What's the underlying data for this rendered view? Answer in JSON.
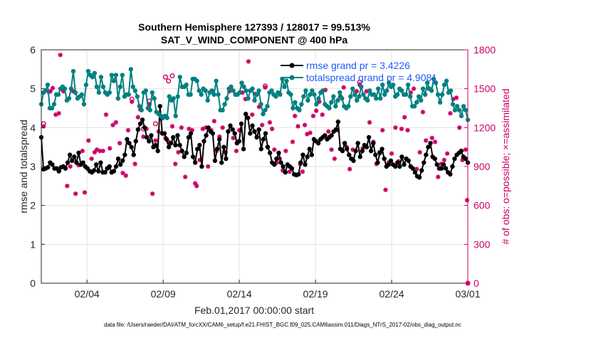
{
  "chart_data": {
    "type": "line",
    "title_line1": "Southern Hemisphere 127393 / 128017 = 99.513%",
    "title_line2": "SAT_V_WIND_COMPONENT @ 400 hPa",
    "xlabel": "Feb.01,2017 00:00:00 start",
    "ylabel": "rmse and totalspread",
    "y2label": "# of obs: o=possible; ×=assimilated",
    "footnote": "data file: /Users/raeder/DAI/ATM_forcXX/CAM6_setup/f.e21.FHIST_BGC.f09_025.CAM6assim.011/Diags_NTrS_2017-02/obs_diag_output.nc",
    "x_tick_labels": [
      "02/04",
      "02/09",
      "02/14",
      "02/19",
      "02/24",
      "03/01"
    ],
    "x_tick_days": [
      4,
      9,
      14,
      19,
      24,
      29
    ],
    "xlim": [
      1,
      29
    ],
    "ylim": [
      0,
      6
    ],
    "y_ticks": [
      0,
      1,
      2,
      3,
      4,
      5,
      6
    ],
    "y2lim": [
      0,
      1800
    ],
    "y2_ticks": [
      0,
      300,
      600,
      900,
      1200,
      1500,
      1800
    ],
    "grid": true,
    "legend_position": "top-right",
    "colors": {
      "rmse": "#000000",
      "spread": "#008080",
      "obs": "#cc0066",
      "legend_text": "#1f5bff"
    },
    "series": [
      {
        "name": "rmse grand pr = 3.4226",
        "values": [
          3.75,
          2.93,
          2.95,
          2.98,
          3.1,
          3.05,
          2.95,
          2.95,
          2.88,
          2.98,
          3.0,
          2.95,
          3.1,
          3.3,
          3.15,
          3.25,
          3.1,
          3.35,
          3.05,
          3.1,
          3.0,
          2.95,
          2.88,
          2.85,
          2.9,
          3.05,
          2.88,
          3.1,
          2.85,
          2.85,
          2.95,
          3.0,
          2.85,
          2.88,
          3.0,
          3.2,
          3.05,
          3.15,
          3.3,
          3.7,
          3.6,
          3.5,
          3.3,
          3.65,
          3.95,
          4.1,
          4.2,
          4.0,
          3.75,
          3.65,
          3.8,
          3.5,
          3.55,
          3.4,
          4.55,
          3.85,
          3.85,
          3.7,
          3.5,
          3.6,
          3.75,
          3.55,
          3.8,
          3.55,
          3.4,
          3.25,
          3.35,
          3.75,
          3.85,
          3.25,
          3.1,
          3.45,
          3.55,
          3.0,
          3.65,
          3.8,
          4.0,
          3.9,
          3.85,
          3.15,
          3.45,
          3.7,
          3.1,
          3.5,
          3.2,
          3.9,
          4.05,
          3.95,
          3.85,
          3.6,
          3.65,
          4.1,
          3.45,
          4.35,
          4.25,
          3.85,
          4.05,
          3.9,
          3.75,
          3.95,
          3.45,
          3.7,
          3.85,
          3.5,
          3.35,
          3.1,
          3.05,
          3.2,
          3.35,
          3.1,
          3.0,
          2.85,
          3.05,
          3.0,
          2.95,
          2.8,
          2.78,
          2.8,
          3.1,
          3.3,
          3.05,
          3.25,
          3.45,
          3.3,
          3.7,
          3.65,
          3.6,
          3.7,
          3.75,
          3.8,
          3.7,
          3.75,
          3.8,
          3.9,
          3.95,
          4.15,
          3.45,
          3.4,
          3.6,
          3.45,
          3.3,
          3.2,
          3.15,
          3.4,
          3.6,
          3.25,
          3.4,
          3.55,
          3.5,
          3.75,
          3.4,
          3.6,
          3.3,
          3.1,
          3.35,
          3.45,
          3.2,
          3.0,
          3.05,
          3.15,
          3.05,
          3.0,
          3.1,
          3.0,
          3.25,
          3.05,
          3.2,
          3.15,
          3.0,
          2.95,
          2.85,
          2.75,
          2.72,
          2.9,
          3.1,
          3.3,
          3.5,
          3.6,
          3.25,
          3.2,
          3.05,
          2.95,
          2.95,
          3.05,
          2.95,
          2.85,
          2.8,
          3.0,
          3.2,
          3.3,
          3.35,
          3.4,
          3.25,
          3.2,
          3.1
        ]
      },
      {
        "name": "totalspread grand pr = 4.9081",
        "values": [
          4.6,
          4.9,
          4.95,
          5.1,
          4.5,
          4.5,
          4.6,
          4.85,
          4.85,
          5.0,
          5.05,
          5.0,
          4.7,
          4.75,
          5.0,
          5.45,
          4.9,
          4.75,
          4.8,
          4.85,
          4.6,
          5.1,
          5.45,
          5.35,
          5.3,
          5.4,
          5.05,
          4.9,
          5.3,
          5.05,
          4.9,
          4.85,
          4.9,
          5.35,
          5.2,
          5.35,
          4.75,
          5.05,
          5.35,
          4.8,
          4.85,
          4.85,
          5.5,
          5.05,
          4.95,
          4.8,
          4.55,
          4.45,
          4.9,
          4.95,
          4.5,
          4.45,
          4.9,
          4.75,
          4.4,
          4.35,
          4.3,
          4.25,
          4.3,
          4.25,
          4.8,
          4.7,
          4.75,
          4.3,
          4.8,
          5.3,
          5.05,
          5.05,
          5.1,
          4.85,
          4.85,
          5.25,
          5.25,
          5.2,
          4.95,
          4.85,
          5.0,
          4.95,
          4.7,
          4.9,
          4.95,
          4.85,
          5.2,
          4.85,
          4.45,
          4.45,
          4.6,
          4.75,
          5.0,
          5.05,
          4.95,
          4.85,
          4.85,
          4.9,
          5.15,
          5.05,
          4.95,
          4.75,
          4.95,
          5.0,
          4.7,
          4.85,
          4.95,
          4.6,
          4.35,
          4.45,
          4.55,
          4.9,
          4.95,
          4.85,
          4.8,
          4.9,
          4.85,
          5.25,
          5.05,
          5.2,
          4.9,
          4.85,
          4.5,
          4.65,
          4.5,
          4.45,
          4.6,
          4.8,
          4.95,
          4.7,
          4.85,
          4.95,
          4.85,
          4.6,
          4.75,
          4.9,
          4.95,
          4.6,
          4.55,
          4.5,
          4.65,
          4.8,
          4.55,
          4.7,
          4.9,
          4.75,
          4.55,
          4.5,
          4.55,
          4.8,
          5.0,
          4.85,
          4.7,
          4.8,
          5.05,
          4.85,
          4.75,
          4.7,
          4.95,
          4.85,
          4.85,
          4.75,
          5.0,
          4.75,
          5.1,
          4.85,
          4.95,
          5.15,
          5.05,
          5.1,
          4.8,
          4.85,
          5.0,
          4.95,
          4.85,
          4.85,
          5.1,
          4.8,
          4.55,
          4.55,
          4.65,
          4.8,
          4.7,
          5.0,
          4.85,
          5.15,
          5.0,
          4.95,
          5.25,
          5.15,
          4.85,
          4.65,
          4.85,
          5.1,
          5.2,
          4.9,
          4.95,
          4.6,
          4.45,
          4.55,
          4.45,
          4.3,
          4.55,
          4.45,
          4.2
        ]
      }
    ],
    "obs_assimilated": [
      {
        "x": 1.15,
        "y": 1210
      },
      {
        "x": 1.5,
        "y": 1475
      },
      {
        "x": 1.6,
        "y": 1480
      },
      {
        "x": 1.75,
        "y": 1505
      },
      {
        "x": 1.95,
        "y": 1300
      },
      {
        "x": 2.15,
        "y": 1310
      },
      {
        "x": 2.25,
        "y": 1760
      },
      {
        "x": 2.45,
        "y": 1480
      },
      {
        "x": 2.7,
        "y": 750
      },
      {
        "x": 2.9,
        "y": 900
      },
      {
        "x": 3.1,
        "y": 1480
      },
      {
        "x": 3.25,
        "y": 690
      },
      {
        "x": 3.45,
        "y": 910
      },
      {
        "x": 3.7,
        "y": 1020
      },
      {
        "x": 3.85,
        "y": 700
      },
      {
        "x": 4.1,
        "y": 1100
      },
      {
        "x": 4.3,
        "y": 960
      },
      {
        "x": 4.5,
        "y": 1010
      },
      {
        "x": 4.65,
        "y": 1030
      },
      {
        "x": 4.85,
        "y": 1020
      },
      {
        "x": 5.05,
        "y": 1020
      },
      {
        "x": 5.25,
        "y": 1300
      },
      {
        "x": 5.5,
        "y": 1040
      },
      {
        "x": 5.7,
        "y": 1220
      },
      {
        "x": 5.9,
        "y": 1240
      },
      {
        "x": 6.15,
        "y": 1080
      },
      {
        "x": 6.35,
        "y": 850
      },
      {
        "x": 6.55,
        "y": 830
      },
      {
        "x": 6.7,
        "y": 1180
      },
      {
        "x": 6.95,
        "y": 1400
      },
      {
        "x": 7.15,
        "y": 920
      },
      {
        "x": 7.35,
        "y": 1280
      },
      {
        "x": 7.5,
        "y": 1340
      },
      {
        "x": 7.7,
        "y": 1130
      },
      {
        "x": 7.9,
        "y": 1190
      },
      {
        "x": 8.1,
        "y": 1380
      },
      {
        "x": 8.3,
        "y": 690
      },
      {
        "x": 8.5,
        "y": 1100
      },
      {
        "x": 8.7,
        "y": 1170
      },
      {
        "x": 8.9,
        "y": 1270
      },
      {
        "x": 9.15,
        "y": 1120
      },
      {
        "x": 9.35,
        "y": 1090
      },
      {
        "x": 9.6,
        "y": 1210
      },
      {
        "x": 9.8,
        "y": 920
      },
      {
        "x": 10.0,
        "y": 1010
      },
      {
        "x": 10.2,
        "y": 1200
      },
      {
        "x": 10.45,
        "y": 820
      },
      {
        "x": 10.7,
        "y": 1190
      },
      {
        "x": 10.9,
        "y": 1180
      },
      {
        "x": 11.1,
        "y": 770
      },
      {
        "x": 11.2,
        "y": 750
      },
      {
        "x": 11.4,
        "y": 950
      },
      {
        "x": 11.6,
        "y": 1190
      },
      {
        "x": 11.8,
        "y": 1200
      },
      {
        "x": 11.95,
        "y": 900
      },
      {
        "x": 12.15,
        "y": 1180
      },
      {
        "x": 12.35,
        "y": 1250
      },
      {
        "x": 12.5,
        "y": 1020
      },
      {
        "x": 12.7,
        "y": 1130
      },
      {
        "x": 12.9,
        "y": 1200
      },
      {
        "x": 13.1,
        "y": 1010
      },
      {
        "x": 13.35,
        "y": 1480
      },
      {
        "x": 13.6,
        "y": 1120
      },
      {
        "x": 13.8,
        "y": 1020
      },
      {
        "x": 14.0,
        "y": 1180
      },
      {
        "x": 14.2,
        "y": 1470
      },
      {
        "x": 14.4,
        "y": 1420
      },
      {
        "x": 14.6,
        "y": 1710
      },
      {
        "x": 14.85,
        "y": 1300
      },
      {
        "x": 15.05,
        "y": 1460
      },
      {
        "x": 15.3,
        "y": 1360
      },
      {
        "x": 15.5,
        "y": 1220
      },
      {
        "x": 15.7,
        "y": 1510
      },
      {
        "x": 15.85,
        "y": 1050
      },
      {
        "x": 16.0,
        "y": 1240
      },
      {
        "x": 16.15,
        "y": 1190
      },
      {
        "x": 16.3,
        "y": 1030
      },
      {
        "x": 16.45,
        "y": 930
      },
      {
        "x": 16.65,
        "y": 960
      },
      {
        "x": 16.85,
        "y": 870
      },
      {
        "x": 17.05,
        "y": 1020
      },
      {
        "x": 17.3,
        "y": 860
      },
      {
        "x": 17.5,
        "y": 1090
      },
      {
        "x": 17.65,
        "y": 1290
      },
      {
        "x": 17.85,
        "y": 1210
      },
      {
        "x": 18.0,
        "y": 920
      },
      {
        "x": 18.15,
        "y": 860
      },
      {
        "x": 18.3,
        "y": 1220
      },
      {
        "x": 18.45,
        "y": 1150
      },
      {
        "x": 18.65,
        "y": 1160
      },
      {
        "x": 18.85,
        "y": 1290
      },
      {
        "x": 19.05,
        "y": 1330
      },
      {
        "x": 19.25,
        "y": 1400
      },
      {
        "x": 19.45,
        "y": 1300
      },
      {
        "x": 19.65,
        "y": 1490
      },
      {
        "x": 19.85,
        "y": 1170
      },
      {
        "x": 20.05,
        "y": 1030
      },
      {
        "x": 20.25,
        "y": 960
      },
      {
        "x": 20.45,
        "y": 1180
      },
      {
        "x": 20.65,
        "y": 1440
      },
      {
        "x": 20.85,
        "y": 1510
      },
      {
        "x": 21.05,
        "y": 1050
      },
      {
        "x": 21.25,
        "y": 880
      },
      {
        "x": 21.45,
        "y": 1030
      },
      {
        "x": 21.7,
        "y": 1480
      },
      {
        "x": 21.9,
        "y": 1530
      },
      {
        "x": 22.1,
        "y": 1040
      },
      {
        "x": 22.35,
        "y": 1480
      },
      {
        "x": 22.55,
        "y": 1240
      },
      {
        "x": 22.8,
        "y": 1090
      },
      {
        "x": 23.0,
        "y": 920
      },
      {
        "x": 23.2,
        "y": 1010
      },
      {
        "x": 23.4,
        "y": 1180
      },
      {
        "x": 23.6,
        "y": 720
      },
      {
        "x": 23.8,
        "y": 930
      },
      {
        "x": 24.0,
        "y": 1000
      },
      {
        "x": 24.25,
        "y": 1200
      },
      {
        "x": 24.45,
        "y": 940
      },
      {
        "x": 24.65,
        "y": 1190
      },
      {
        "x": 24.85,
        "y": 1280
      },
      {
        "x": 25.05,
        "y": 1180
      },
      {
        "x": 25.25,
        "y": 1470
      },
      {
        "x": 25.45,
        "y": 1500
      },
      {
        "x": 25.65,
        "y": 880
      },
      {
        "x": 25.85,
        "y": 1010
      },
      {
        "x": 26.05,
        "y": 1320
      },
      {
        "x": 26.25,
        "y": 1100
      },
      {
        "x": 26.45,
        "y": 1500
      },
      {
        "x": 26.65,
        "y": 1120
      },
      {
        "x": 26.85,
        "y": 1090
      },
      {
        "x": 27.05,
        "y": 820
      },
      {
        "x": 27.25,
        "y": 920
      },
      {
        "x": 27.45,
        "y": 950
      },
      {
        "x": 27.65,
        "y": 1000
      },
      {
        "x": 27.85,
        "y": 1310
      },
      {
        "x": 28.05,
        "y": 1420
      },
      {
        "x": 28.25,
        "y": 1430
      },
      {
        "x": 28.45,
        "y": 1200
      },
      {
        "x": 28.65,
        "y": 950
      },
      {
        "x": 28.85,
        "y": 1030
      },
      {
        "x": 28.95,
        "y": 640
      },
      {
        "x": 29.0,
        "y": 0
      }
    ],
    "obs_possible": [
      {
        "x": 1.15,
        "y": 1230
      },
      {
        "x": 6.95,
        "y": 1420
      },
      {
        "x": 7.7,
        "y": 1190
      },
      {
        "x": 8.1,
        "y": 1405
      },
      {
        "x": 8.5,
        "y": 1230
      },
      {
        "x": 9.15,
        "y": 1590
      },
      {
        "x": 9.35,
        "y": 1560
      },
      {
        "x": 9.6,
        "y": 1600
      },
      {
        "x": 15.7,
        "y": 1520
      },
      {
        "x": 21.9,
        "y": 1550
      },
      {
        "x": 29.0,
        "y": 0
      }
    ]
  }
}
